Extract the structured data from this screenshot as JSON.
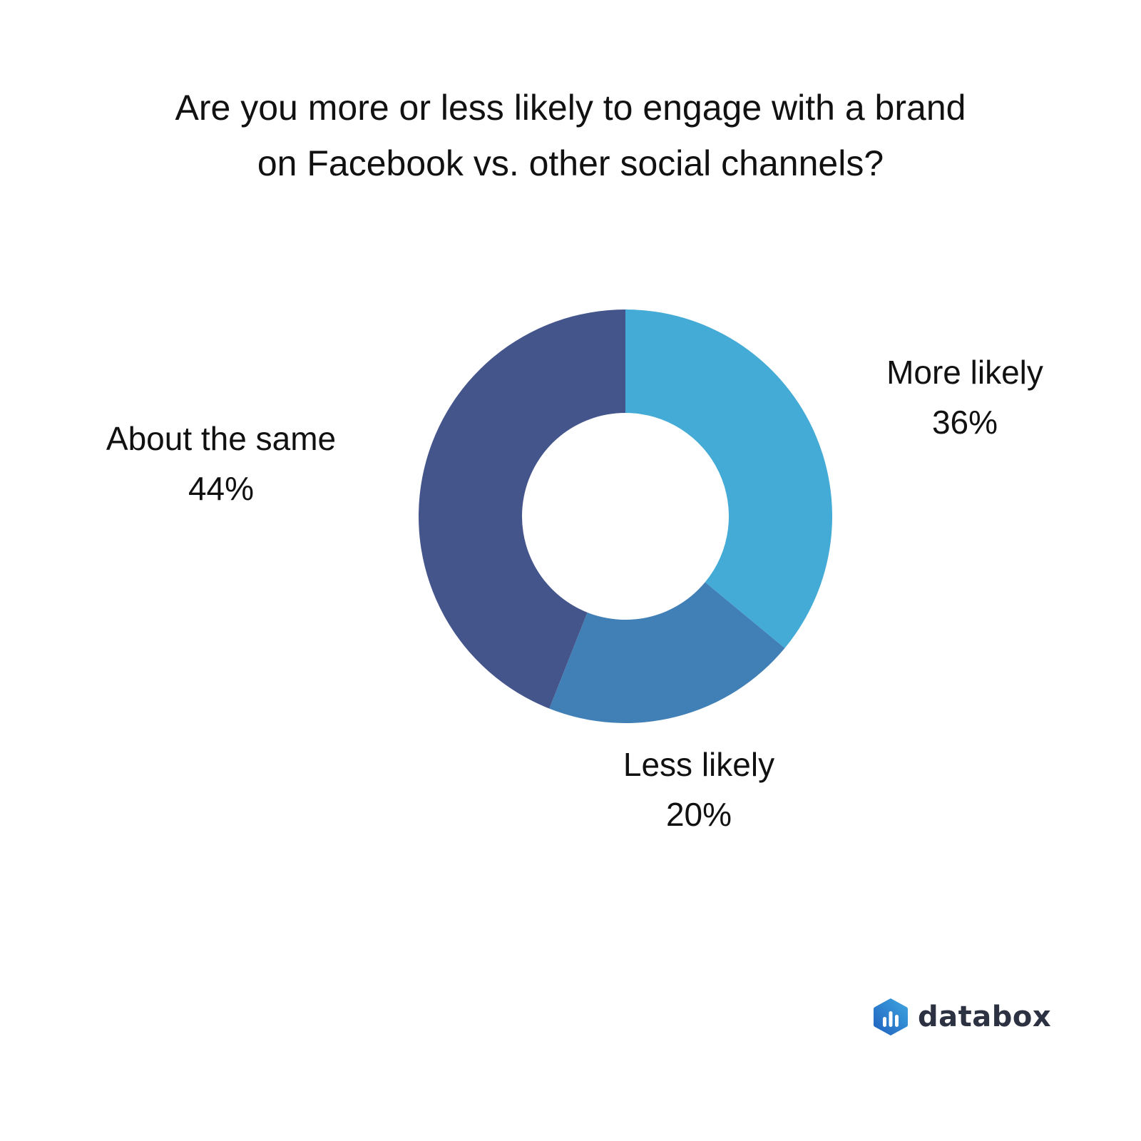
{
  "chart_data": {
    "type": "pie",
    "variant": "donut",
    "title": "Are you more or less likely to engage with a brand on Facebook vs. other social channels?",
    "title_lines": [
      "Are you more or less likely to engage with a brand",
      "on Facebook vs. other social channels?"
    ],
    "slices": [
      {
        "label": "More likely",
        "value": 36,
        "value_label": "36%",
        "color": "#44aad6"
      },
      {
        "label": "Less likely",
        "value": 20,
        "value_label": "20%",
        "color": "#4180b6"
      },
      {
        "label": "About the same",
        "value": 44,
        "value_label": "44%",
        "color": "#44558c"
      }
    ],
    "legend": "none",
    "label_placement": "outside"
  },
  "branding": {
    "logo_text": "databox",
    "logo_icon": "databox-hexagon-icon",
    "logo_colors": [
      "#1f5fbf",
      "#3fa7e0"
    ]
  }
}
